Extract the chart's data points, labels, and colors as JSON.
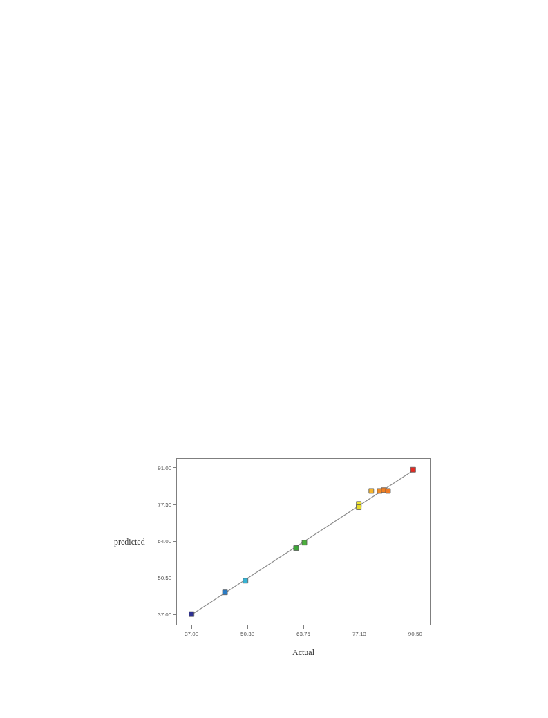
{
  "chart_data": {
    "type": "scatter",
    "xlabel": "Actual",
    "ylabel": "predicted",
    "marker": "square",
    "line_style": "solid",
    "xlim": [
      33.5,
      94.0
    ],
    "ylim": [
      33.3,
      94.3
    ],
    "xticks": [
      {
        "value": 37,
        "label": "37.00"
      },
      {
        "value": 50.375,
        "label": "50.38"
      },
      {
        "value": 63.75,
        "label": "63.75"
      },
      {
        "value": 77.125,
        "label": "77.13"
      },
      {
        "value": 90.5,
        "label": "90.50"
      }
    ],
    "yticks": [
      {
        "value": 37,
        "label": "37.00"
      },
      {
        "value": 50.5,
        "label": "50.50"
      },
      {
        "value": 64,
        "label": "64.00"
      },
      {
        "value": 77.5,
        "label": "77.50"
      },
      {
        "value": 91,
        "label": "91.00"
      }
    ],
    "series": [
      {
        "type": "line",
        "color": "#8c8c8c",
        "marker": "none",
        "x": [
          37.0,
          90.0
        ],
        "values": [
          37.0,
          90.0
        ]
      },
      {
        "x": [
          37.0,
          45.0,
          49.9,
          62.0,
          64.0,
          77.0,
          77.0,
          80.0,
          82.0,
          83.0,
          84.0,
          90.0
        ],
        "values": [
          37.2,
          45.2,
          49.5,
          61.5,
          63.5,
          77.7,
          76.5,
          82.5,
          82.5,
          82.8,
          82.5,
          90.3
        ],
        "colors": [
          "#2e3192",
          "#2a7bc4",
          "#36b3d4",
          "#3da639",
          "#4cae3c",
          "#f1e631",
          "#e8dc2a",
          "#f5b52e",
          "#f08a26",
          "#f07f24",
          "#ef7a24",
          "#e62a22"
        ]
      }
    ]
  }
}
